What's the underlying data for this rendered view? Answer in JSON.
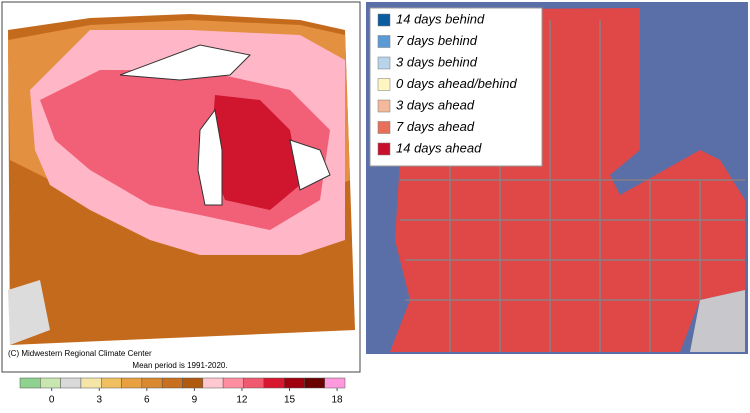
{
  "left_map": {
    "credit": "(C) Midwestern Regional Climate Center",
    "note": "Mean period is 1991-2020.",
    "colorbar": {
      "lim": [
        -2,
        18.5
      ],
      "ticks": [
        0,
        3,
        6,
        9,
        12,
        15,
        18
      ],
      "colors": [
        "#8fd18f",
        "#c8e6b0",
        "#d9d9d9",
        "#f5e6a8",
        "#f0c060",
        "#e8a040",
        "#d98a30",
        "#c87020",
        "#b05a10",
        "#ffc8d0",
        "#ff8fa0",
        "#f05a70",
        "#d81830",
        "#a00010",
        "#6a0000",
        "#ff99dd"
      ]
    }
  },
  "right_map": {
    "legend": [
      {
        "label": "14 days behind",
        "color": "#0b5c9e"
      },
      {
        "label": "7 days behind",
        "color": "#5b9bd5"
      },
      {
        "label": "3 days behind",
        "color": "#b8d4ea"
      },
      {
        "label": "0 days ahead/behind",
        "color": "#fff5c0"
      },
      {
        "label": "3 days ahead",
        "color": "#f4b89a"
      },
      {
        "label": "7 days ahead",
        "color": "#e8705a"
      },
      {
        "label": "14 days ahead",
        "color": "#c8102e"
      }
    ]
  }
}
